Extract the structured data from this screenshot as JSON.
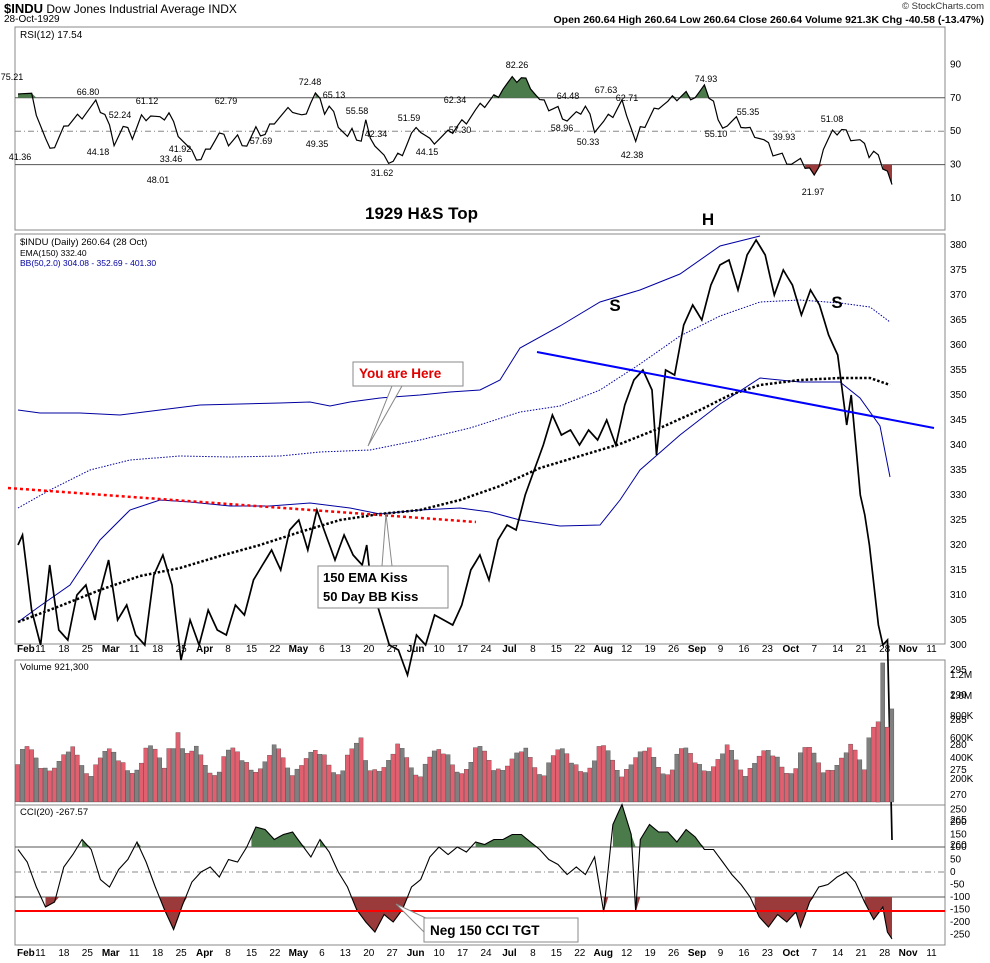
{
  "header": {
    "symbol": "$INDU",
    "name": "Dow Jones Industrial Average",
    "exchange": "INDX",
    "date": "28-Oct-1929",
    "ohlc": "Open 260.64  High 260.64  Low 260.64  Close 260.64  Volume 921.3K  Chg -40.58 (-13.47%)",
    "brand": "© StockCharts.com"
  },
  "colors": {
    "price": "#000000",
    "bb": "#0000a0",
    "trend": "#0000ff",
    "support": "#ff0000",
    "ema": "#000000",
    "up_vol": "#808080",
    "down_vol": "#e06070",
    "pos_fill": "#4b7a4b",
    "neg_fill": "#9a3a3a"
  },
  "x_axis": {
    "labels": [
      "Feb",
      "11",
      "18",
      "25",
      "Mar",
      "11",
      "18",
      "25",
      "Apr",
      "8",
      "15",
      "22",
      "May",
      "6",
      "13",
      "20",
      "27",
      "Jun",
      "10",
      "17",
      "24",
      "Jul",
      "8",
      "15",
      "22",
      "Aug",
      "12",
      "19",
      "26",
      "Sep",
      "9",
      "16",
      "23",
      "Oct",
      "7",
      "14",
      "21",
      "28",
      "Nov",
      "11"
    ],
    "bold": [
      "Feb",
      "Mar",
      "Apr",
      "May",
      "Jun",
      "Jul",
      "Aug",
      "Sep",
      "Oct",
      "Nov"
    ]
  },
  "rsi": {
    "legend": "RSI(12) 17.54",
    "levels": [
      90,
      70,
      50,
      30,
      10
    ],
    "annotations": [
      "75.21",
      "41.36",
      "66.80",
      "44.18",
      "52.24",
      "61.12",
      "33.46",
      "48.01",
      "41.92",
      "57.69",
      "62.79",
      "72.48",
      "65.13",
      "49.35",
      "55.58",
      "42.34",
      "31.62",
      "51.59",
      "44.15",
      "57.30",
      "62.34",
      "82.26",
      "64.48",
      "58.96",
      "50.33",
      "67.63",
      "62.71",
      "42.38",
      "74.93",
      "55.10",
      "55.35",
      "39.93",
      "21.97",
      "51.08"
    ]
  },
  "price": {
    "legend_1": "$INDU (Daily) 260.64 (28 Oct)",
    "legend_2": "EMA(150) 332.40",
    "legend_3": "BB(50,2.0) 304.08 - 352.69 - 401.30",
    "title": "1929 H&S Top",
    "labels": {
      "h": "H",
      "s1": "S",
      "s2": "S"
    },
    "callout_here": "You are Here",
    "callout_kiss_1": "150 EMA Kiss",
    "callout_kiss_2": "50 Day BB Kiss",
    "ticks": [
      380,
      375,
      370,
      365,
      360,
      355,
      350,
      345,
      340,
      335,
      330,
      325,
      320,
      315,
      310,
      305,
      300,
      295,
      290,
      285,
      280,
      275,
      270,
      265,
      260
    ]
  },
  "volume": {
    "legend": "Volume 921,300",
    "ticks": [
      "1.2M",
      "1.0M",
      "800K",
      "600K",
      "400K",
      "200K"
    ]
  },
  "cci": {
    "legend": "CCI(20) -267.57",
    "ticks": [
      "250",
      "200",
      "150",
      "100",
      "50",
      "0",
      "-50",
      "-100",
      "-150",
      "-200",
      "-250"
    ],
    "callout": "Neg 150 CCI TGT"
  },
  "chart_data": {
    "type": "line",
    "title": "1929 H&S Top",
    "x_range": [
      "1929-02-01",
      "1929-11-11"
    ],
    "price_key_points": [
      {
        "date": "1929-02-01",
        "close": 320
      },
      {
        "date": "1929-02-11",
        "close": 305
      },
      {
        "date": "1929-02-25",
        "close": 317
      },
      {
        "date": "1929-03-11",
        "close": 313
      },
      {
        "date": "1929-03-25",
        "close": 297
      },
      {
        "date": "1929-04-08",
        "close": 305
      },
      {
        "date": "1929-04-22",
        "close": 315
      },
      {
        "date": "1929-05-03",
        "close": 327
      },
      {
        "date": "1929-05-13",
        "close": 320
      },
      {
        "date": "1929-05-20",
        "close": 315
      },
      {
        "date": "1929-05-27",
        "close": 294
      },
      {
        "date": "1929-06-10",
        "close": 305
      },
      {
        "date": "1929-06-24",
        "close": 320
      },
      {
        "date": "1929-07-08",
        "close": 345
      },
      {
        "date": "1929-07-22",
        "close": 343
      },
      {
        "date": "1929-08-05",
        "close": 355
      },
      {
        "date": "1929-08-12",
        "close": 338
      },
      {
        "date": "1929-08-26",
        "close": 370
      },
      {
        "date": "1929-09-03",
        "close": 381
      },
      {
        "date": "1929-09-16",
        "close": 370
      },
      {
        "date": "1929-09-23",
        "close": 355
      },
      {
        "date": "1929-10-04",
        "close": 326
      },
      {
        "date": "1929-10-11",
        "close": 353
      },
      {
        "date": "1929-10-18",
        "close": 334
      },
      {
        "date": "1929-10-25",
        "close": 300
      },
      {
        "date": "1929-10-28",
        "close": 260.64
      }
    ],
    "ema150_last": 332.4,
    "bb": {
      "lower": 304.08,
      "mid": 352.69,
      "upper": 401.3
    },
    "rsi_last": 17.54,
    "cci_last": -267.57,
    "volume_last": 921300,
    "ylim_price": [
      260,
      382
    ]
  }
}
